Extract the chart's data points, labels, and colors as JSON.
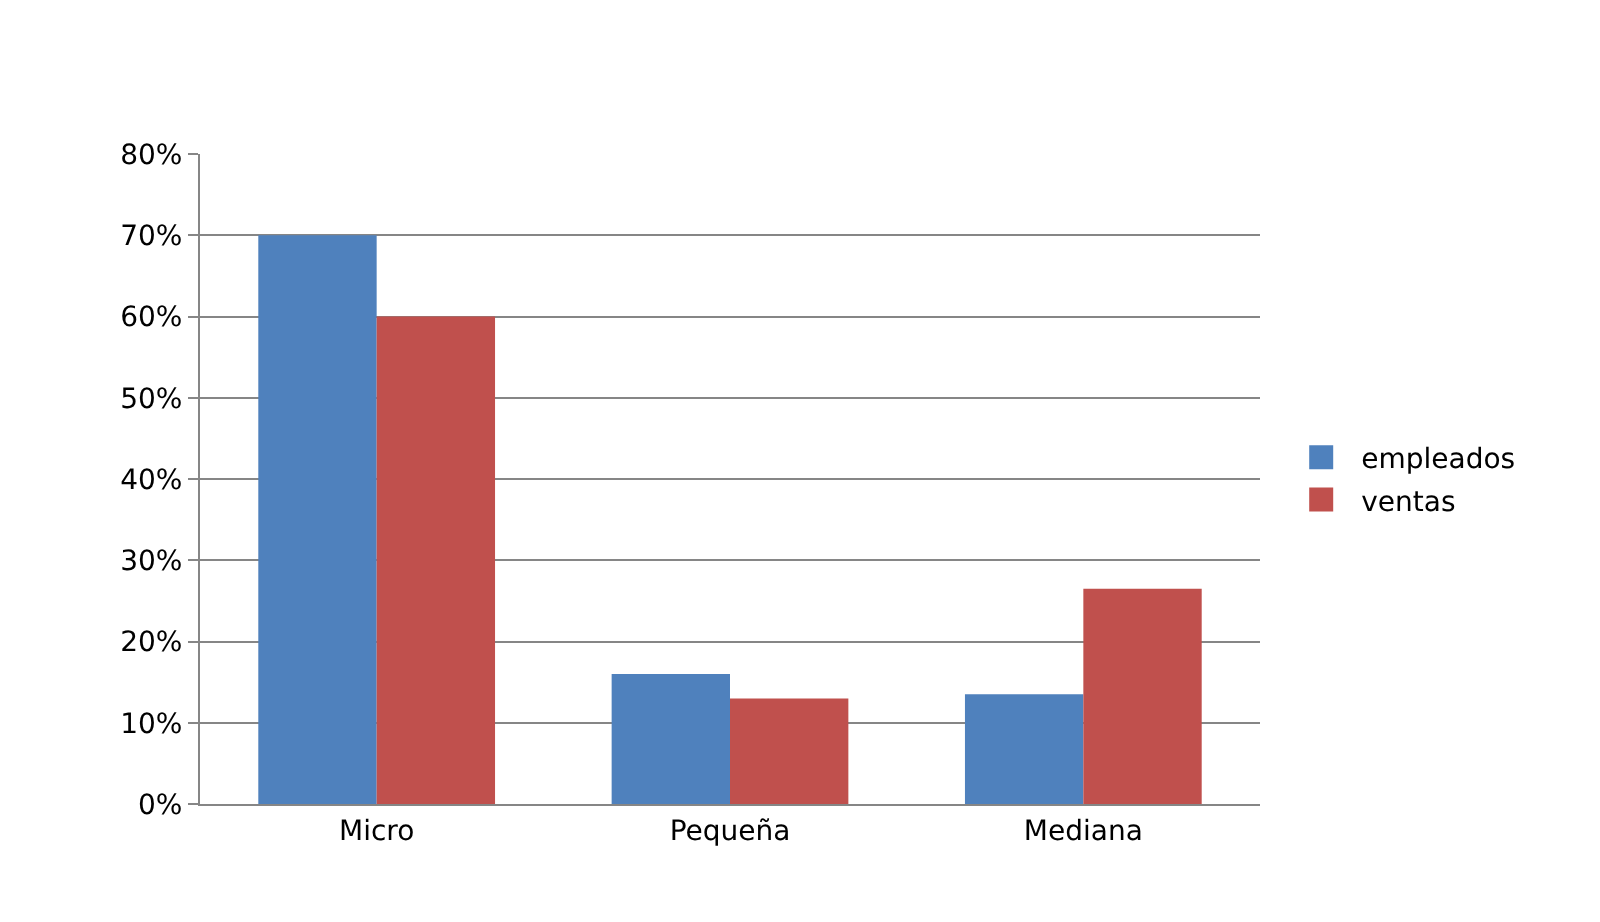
{
  "chart_data": {
    "type": "bar",
    "categories": [
      "Micro",
      "Pequeña",
      "Mediana"
    ],
    "series": [
      {
        "name": "empleados",
        "color": "#4f81bd",
        "values": [
          70,
          16,
          13.5
        ]
      },
      {
        "name": "ventas",
        "color": "#c0504d",
        "values": [
          60,
          13,
          26.5
        ]
      }
    ],
    "ylim": [
      0,
      80
    ],
    "yticks": [
      {
        "value": 0,
        "label": "0%"
      },
      {
        "value": 10,
        "label": "10%"
      },
      {
        "value": 20,
        "label": "20%"
      },
      {
        "value": 30,
        "label": "30%"
      },
      {
        "value": 40,
        "label": "40%"
      },
      {
        "value": 50,
        "label": "50%"
      },
      {
        "value": 60,
        "label": "60%"
      },
      {
        "value": 70,
        "label": "70%"
      },
      {
        "value": 80,
        "label": "80%"
      }
    ],
    "grid": "y",
    "legend": "right"
  }
}
